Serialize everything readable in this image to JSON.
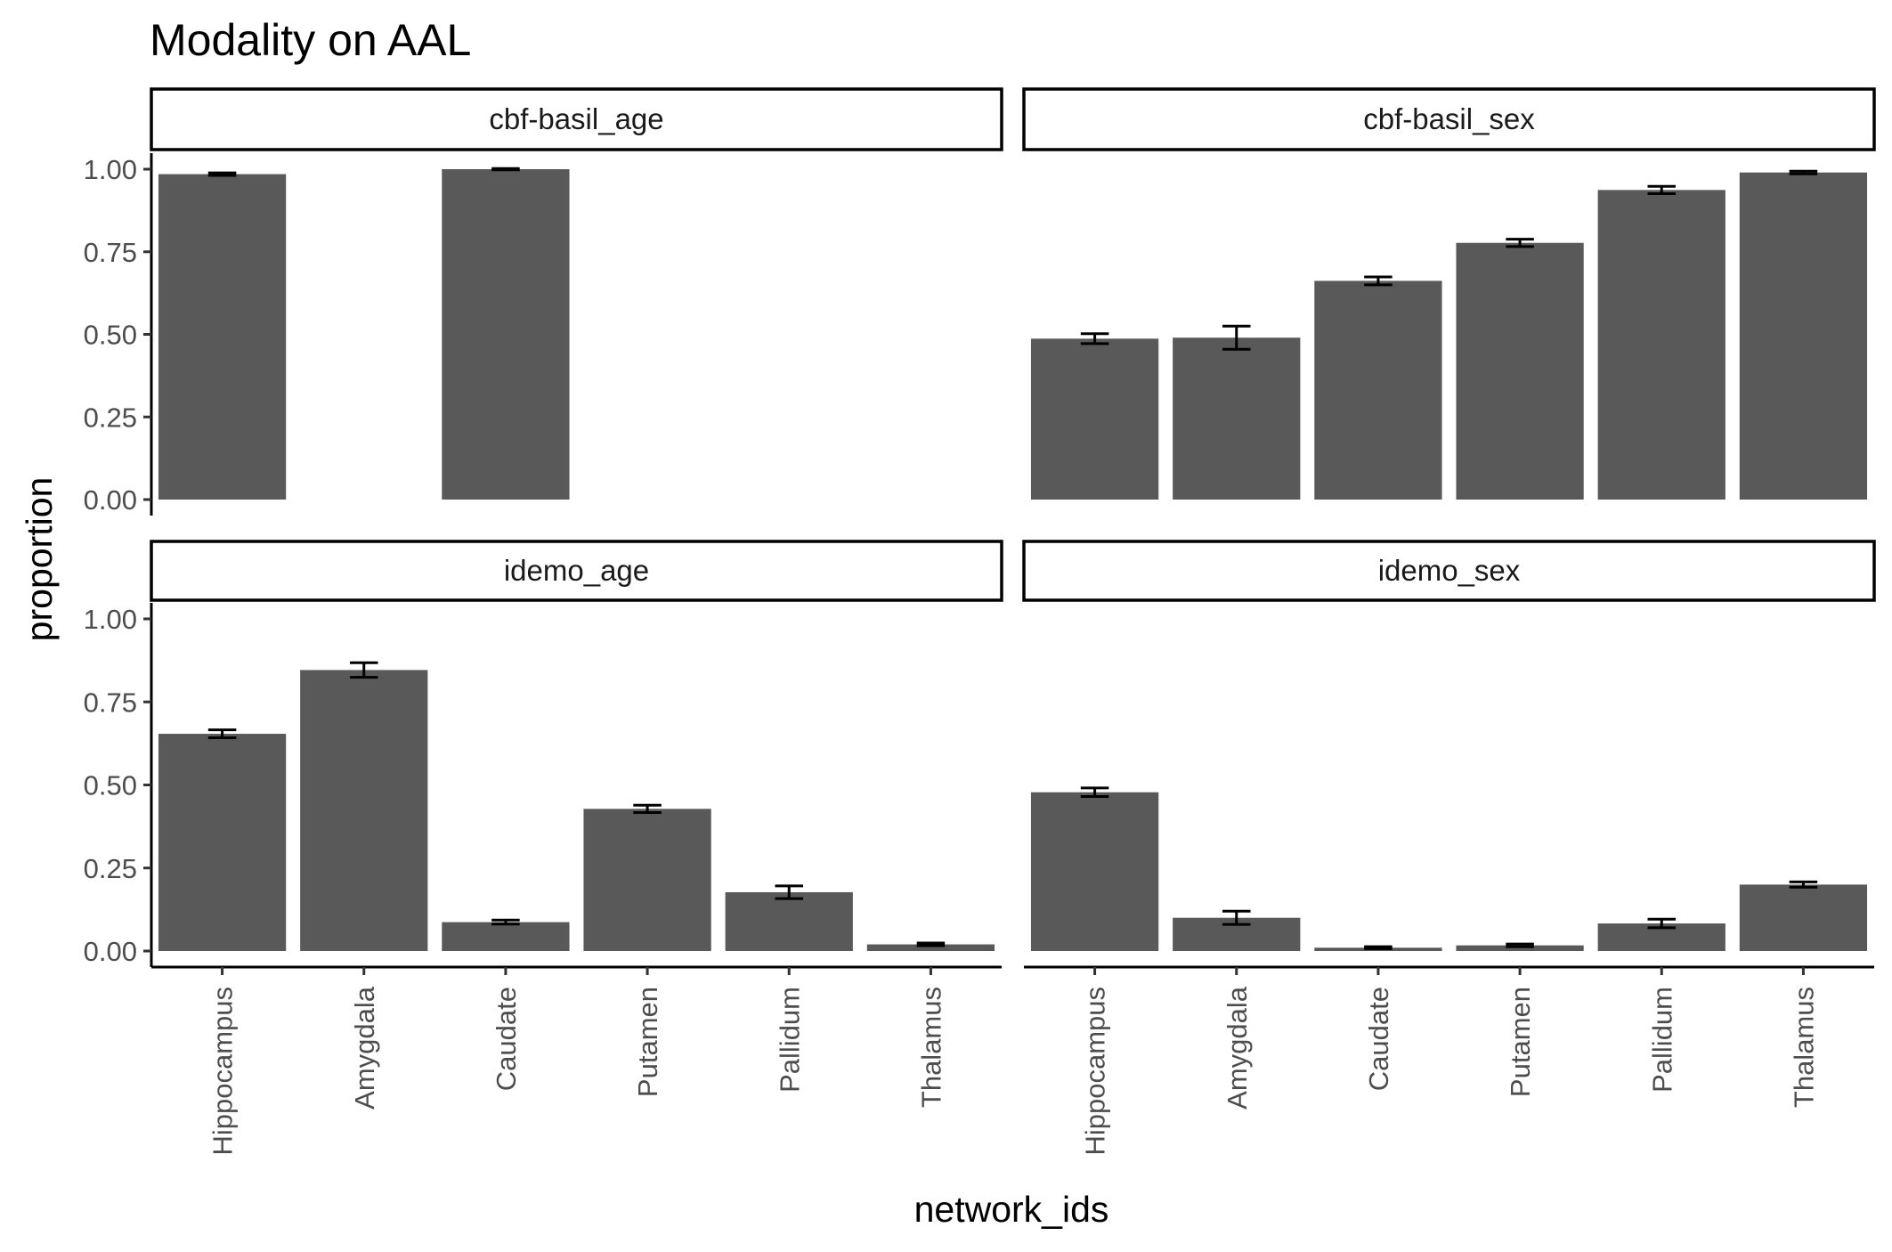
{
  "chart_data": {
    "type": "bar",
    "title": "Modality on AAL",
    "xlabel": "network_ids",
    "ylabel": "proportion",
    "ylim": [
      0,
      1
    ],
    "y_ticks": [
      "0.00",
      "0.25",
      "0.50",
      "0.75",
      "1.00"
    ],
    "y_tick_values": [
      0,
      0.25,
      0.5,
      0.75,
      1.0
    ],
    "categories": [
      "Hippocampus",
      "Amygdala",
      "Caudate",
      "Putamen",
      "Pallidum",
      "Thalamus"
    ],
    "bar_color": "#595959",
    "panels": [
      {
        "name": "cbf-basil_age",
        "values": [
          0.985,
          null,
          1.0,
          null,
          null,
          null
        ],
        "errors": [
          0.004,
          null,
          0.002,
          null,
          null,
          null
        ]
      },
      {
        "name": "cbf-basil_sex",
        "values": [
          0.487,
          0.49,
          0.662,
          0.777,
          0.937,
          0.99
        ],
        "errors": [
          0.015,
          0.035,
          0.012,
          0.011,
          0.011,
          0.004
        ]
      },
      {
        "name": "idemo_age",
        "values": [
          0.654,
          0.846,
          0.087,
          0.428,
          0.177,
          0.02
        ],
        "errors": [
          0.012,
          0.022,
          0.006,
          0.011,
          0.019,
          0.004
        ]
      },
      {
        "name": "idemo_sex",
        "values": [
          0.478,
          0.1,
          0.01,
          0.017,
          0.083,
          0.2
        ],
        "errors": [
          0.013,
          0.02,
          0.003,
          0.004,
          0.013,
          0.008
        ]
      }
    ]
  }
}
